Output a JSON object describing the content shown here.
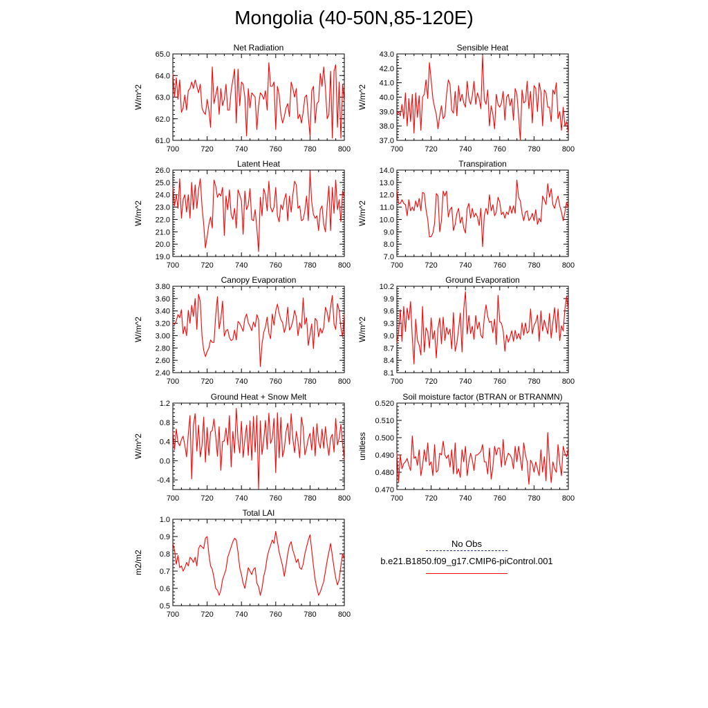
{
  "page_title": "Mongolia (40-50N,85-120E)",
  "legend": {
    "obs_label": "No Obs",
    "obs_color": "#2b2b8f",
    "model_label": "b.e21.B1850.f09_g17.CMIP6-piControl.001",
    "model_color": "#ff0000"
  },
  "chart_data": [
    {
      "type": "line",
      "title": "Net Radiation",
      "ylabel": "W/m^2",
      "xlim": [
        700,
        800
      ],
      "ylim": [
        61.0,
        65.0
      ],
      "xticks": [
        "700",
        "720",
        "740",
        "760",
        "780",
        "800"
      ],
      "yticks": [
        "61.0",
        "62.0",
        "63.0",
        "64.0",
        "65.0"
      ],
      "x_start": 700,
      "values": [
        64.1,
        63.0,
        63.9,
        62.9,
        63.8,
        62.3,
        62.5,
        63.1,
        62.4,
        63.3,
        63.4,
        63.7,
        63.4,
        63.8,
        63.5,
        63.2,
        63.6,
        62.5,
        62.3,
        62.2,
        62.9,
        62.4,
        61.6,
        64.4,
        62.7,
        63.1,
        63.5,
        62.2,
        63.4,
        62.6,
        62.9,
        63.6,
        62.4,
        62.4,
        63.3,
        63.8,
        64.3,
        61.8,
        64.3,
        62.6,
        63.7,
        63.6,
        63.0,
        61.2,
        63.4,
        62.5,
        63.2,
        63.1,
        63.0,
        61.5,
        62.6,
        63.2,
        63.1,
        62.9,
        63.3,
        62.4,
        64.6,
        63.5,
        63.5,
        63.7,
        61.5,
        63.5,
        63.1,
        62.2,
        61.8,
        62.1,
        62.5,
        62.7,
        62.1,
        63.7,
        63.4,
        63.0,
        63.4,
        62.0,
        62.2,
        61.8,
        62.3,
        63.0,
        63.1,
        62.1,
        61.2,
        63.3,
        63.5,
        61.8,
        62.7,
        62.8,
        64.1,
        63.5,
        64.4,
        63.4,
        62.0,
        62.2,
        64.2,
        61.1,
        64.2,
        64.5,
        61.6,
        63.7,
        61.1,
        63.6,
        62.8
      ]
    },
    {
      "type": "line",
      "title": "Sensible Heat",
      "ylabel": "W/m^2",
      "xlim": [
        700,
        800
      ],
      "ylim": [
        37.0,
        43.0
      ],
      "xticks": [
        "700",
        "720",
        "740",
        "760",
        "780",
        "800"
      ],
      "yticks": [
        "37.0",
        "38.0",
        "39.0",
        "40.0",
        "41.0",
        "42.0",
        "43.0"
      ],
      "x_start": 700,
      "values": [
        38.8,
        39.0,
        38.7,
        39.5,
        38.5,
        40.3,
        38.0,
        39.9,
        38.3,
        40.2,
        37.5,
        40.3,
        38.6,
        40.1,
        37.7,
        40.0,
        40.2,
        41.2,
        39.9,
        42.4,
        41.2,
        39.9,
        39.3,
        38.8,
        37.8,
        38.7,
        39.4,
        38.5,
        38.7,
        40.2,
        41.2,
        40.9,
        39.1,
        38.9,
        40.4,
        38.7,
        40.8,
        39.7,
        40.2,
        39.6,
        39.3,
        41.1,
        39.9,
        39.5,
        40.1,
        41.1,
        39.5,
        40.3,
        39.9,
        39.2,
        42.9,
        39.8,
        39.5,
        40.5,
        38.0,
        39.4,
        38.8,
        37.8,
        40.2,
        39.5,
        39.3,
        39.6,
        40.4,
        38.4,
        40.0,
        40.2,
        39.4,
        39.9,
        38.4,
        40.6,
        40.2,
        38.7,
        37.0,
        40.5,
        39.6,
        39.7,
        41.1,
        39.2,
        40.4,
        38.2,
        40.8,
        40.6,
        39.0,
        41.0,
        40.4,
        38.0,
        40.5,
        40.3,
        39.3,
        39.3,
        38.3,
        40.5,
        40.2,
        41.0,
        38.5,
        39.0,
        37.7,
        39.3,
        38.0,
        38.3,
        37.5
      ]
    },
    {
      "type": "line",
      "title": "Latent Heat",
      "ylabel": "W/m^2",
      "xlim": [
        700,
        800
      ],
      "ylim": [
        19.0,
        26.0
      ],
      "xticks": [
        "700",
        "720",
        "740",
        "760",
        "780",
        "800"
      ],
      "yticks": [
        "19.0",
        "20.0",
        "21.0",
        "22.0",
        "23.0",
        "24.0",
        "25.0",
        "26.0"
      ],
      "x_start": 700,
      "values": [
        24.6,
        23.1,
        24.0,
        22.9,
        25.3,
        22.1,
        23.6,
        24.0,
        22.6,
        24.0,
        22.1,
        25.0,
        22.8,
        24.8,
        22.9,
        24.4,
        25.3,
        23.1,
        21.6,
        19.7,
        20.6,
        21.6,
        22.2,
        21.3,
        25.2,
        24.7,
        23.8,
        24.1,
        23.9,
        24.6,
        20.7,
        23.9,
        22.8,
        24.4,
        22.4,
        22.0,
        22.9,
        21.3,
        24.4,
        24.0,
        23.5,
        20.8,
        24.3,
        22.8,
        23.2,
        24.5,
        22.0,
        21.9,
        22.8,
        21.3,
        19.4,
        23.8,
        22.3,
        24.5,
        24.0,
        22.7,
        25.1,
        23.0,
        22.6,
        23.0,
        24.6,
        22.3,
        21.8,
        23.2,
        22.8,
        23.6,
        24.1,
        21.9,
        23.9,
        22.6,
        24.0,
        25.1,
        24.8,
        22.9,
        23.1,
        21.9,
        22.0,
        22.7,
        23.9,
        21.9,
        25.9,
        23.4,
        22.4,
        22.1,
        22.3,
        21.1,
        22.8,
        23.1,
        21.6,
        21.0,
        23.1,
        24.7,
        21.1,
        24.6,
        22.5,
        25.2,
        22.8,
        23.6,
        21.8,
        24.3,
        23.8
      ]
    },
    {
      "type": "line",
      "title": "Transpiration",
      "ylabel": "W/m^2",
      "xlim": [
        700,
        800
      ],
      "ylim": [
        7.0,
        14.0
      ],
      "xticks": [
        "700",
        "720",
        "740",
        "760",
        "780",
        "800"
      ],
      "yticks": [
        "7.0",
        "8.0",
        "9.0",
        "10.0",
        "11.0",
        "12.0",
        "13.0",
        "14.0"
      ],
      "x_start": 700,
      "values": [
        12.4,
        11.3,
        11.3,
        11.6,
        11.3,
        11.2,
        10.3,
        11.6,
        10.7,
        11.0,
        10.7,
        11.5,
        11.0,
        11.7,
        10.7,
        12.2,
        12.1,
        10.8,
        10.0,
        8.6,
        8.6,
        8.9,
        9.7,
        12.1,
        11.9,
        9.0,
        9.9,
        12.3,
        11.9,
        12.3,
        10.2,
        10.8,
        11.0,
        9.1,
        9.6,
        10.5,
        10.9,
        9.7,
        10.2,
        9.3,
        8.9,
        10.9,
        11.3,
        10.1,
        10.9,
        10.2,
        10.5,
        10.2,
        9.5,
        10.9,
        7.8,
        10.3,
        10.9,
        10.4,
        12.0,
        10.7,
        11.2,
        10.3,
        10.6,
        11.8,
        11.4,
        10.4,
        10.6,
        10.1,
        10.6,
        10.4,
        11.1,
        10.5,
        11.1,
        10.5,
        13.2,
        11.8,
        11.5,
        10.5,
        9.9,
        10.6,
        10.7,
        9.9,
        10.1,
        10.5,
        9.9,
        10.8,
        9.6,
        10.1,
        9.8,
        11.9,
        11.6,
        11.2,
        12.9,
        11.8,
        12.5,
        11.2,
        10.9,
        11.5,
        11.9,
        11.1,
        10.6,
        9.9,
        10.6,
        11.4,
        10.9
      ]
    },
    {
      "type": "line",
      "title": "Canopy Evaporation",
      "ylabel": "W/m^2",
      "xlim": [
        700,
        800
      ],
      "ylim": [
        2.4,
        3.8
      ],
      "xticks": [
        "700",
        "720",
        "740",
        "760",
        "780",
        "800"
      ],
      "yticks": [
        "2.40",
        "2.60",
        "2.80",
        "3.00",
        "3.20",
        "3.40",
        "3.60",
        "3.80"
      ],
      "x_start": 700,
      "values": [
        3.21,
        3.18,
        3.24,
        3.34,
        3.29,
        3.42,
        3.03,
        3.15,
        3.0,
        3.41,
        3.2,
        3.49,
        3.31,
        3.6,
        3.1,
        3.67,
        3.55,
        3.0,
        2.76,
        2.66,
        2.74,
        2.8,
        2.93,
        2.89,
        2.89,
        3.33,
        3.63,
        3.11,
        3.27,
        3.56,
        2.99,
        3.08,
        3.1,
        2.97,
        2.92,
        2.94,
        3.09,
        2.93,
        3.23,
        3.2,
        3.14,
        3.07,
        3.28,
        3.35,
        3.21,
        3.15,
        3.08,
        3.22,
        3.14,
        3.34,
        3.26,
        2.5,
        2.86,
        3.05,
        3.14,
        3.3,
        3.04,
        2.95,
        3.35,
        3.17,
        3.4,
        3.51,
        3.36,
        3.26,
        3.21,
        3.05,
        3.16,
        3.46,
        3.09,
        3.14,
        3.24,
        3.41,
        3.3,
        3.0,
        3.21,
        3.12,
        3.61,
        3.18,
        3.29,
        2.84,
        3.02,
        3.19,
        2.79,
        3.28,
        3.24,
        2.98,
        3.12,
        3.04,
        3.13,
        3.46,
        3.38,
        3.22,
        3.46,
        3.65,
        3.19,
        3.1,
        3.52,
        3.41,
        3.13,
        2.98,
        3.35
      ]
    },
    {
      "type": "line",
      "title": "Ground Evaporation",
      "ylabel": "W/m^2",
      "xlim": [
        700,
        800
      ],
      "ylim": [
        8.1,
        10.2
      ],
      "xticks": [
        "700",
        "720",
        "740",
        "760",
        "780",
        "800"
      ],
      "yticks": [
        "8.1",
        "8.4",
        "8.7",
        "9.0",
        "9.3",
        "9.6",
        "9.9",
        "10.2"
      ],
      "x_start": 700,
      "values": [
        8.82,
        9.07,
        9.63,
        8.86,
        9.71,
        9.1,
        9.67,
        9.38,
        9.83,
        8.95,
        8.31,
        9.4,
        8.89,
        8.77,
        8.53,
        9.71,
        8.6,
        9.19,
        9.09,
        8.7,
        9.43,
        8.91,
        9.12,
        8.46,
        9.18,
        9.43,
        8.8,
        9.45,
        8.88,
        9.2,
        9.03,
        9.16,
        8.68,
        9.56,
        8.62,
        8.82,
        9.16,
        9.55,
        8.6,
        9.64,
        10.07,
        9.04,
        9.49,
        9.05,
        9.23,
        8.91,
        9.49,
        9.16,
        9.33,
        9.01,
        8.94,
        9.45,
        9.75,
        9.46,
        9.32,
        9.35,
        9.07,
        9.4,
        8.78,
        9.98,
        9.34,
        9.3,
        9.12,
        8.62,
        9.02,
        8.84,
        8.96,
        9.12,
        8.86,
        9.13,
        8.92,
        9.05,
        8.91,
        9.31,
        9.01,
        9.31,
        9.06,
        9.11,
        9.65,
        9.04,
        9.25,
        9.33,
        9.5,
        8.86,
        9.6,
        9.11,
        9.38,
        9.21,
        9.04,
        9.54,
        8.94,
        9.33,
        9.68,
        9.08,
        9.65,
        8.88,
        9.24,
        9.11,
        9.64,
        9.96,
        9.64
      ]
    },
    {
      "type": "line",
      "title": "Ground Heat + Snow Melt",
      "ylabel": "W/m^2",
      "xlim": [
        700,
        800
      ],
      "ylim": [
        -0.6,
        1.2
      ],
      "xticks": [
        "700",
        "720",
        "740",
        "760",
        "780",
        "800"
      ],
      "yticks": [
        "-0.4",
        "0.0",
        "0.4",
        "0.8",
        "1.2"
      ],
      "x_start": 700,
      "values": [
        0.61,
        0.23,
        0.66,
        0.38,
        0.31,
        0.44,
        0.51,
        0.32,
        0.08,
        0.55,
        0.94,
        -0.38,
        0.74,
        0.98,
        0.2,
        0.74,
        0.08,
        0.32,
        0.91,
        -0.03,
        0.69,
        0.11,
        0.6,
        0.63,
        0.87,
        0.51,
        0.09,
        0.71,
        -0.2,
        0.4,
        0.41,
        0.68,
        0.33,
        0.94,
        -0.13,
        0.61,
        0.16,
        1.09,
        0.43,
        0.16,
        0.82,
        0.07,
        0.44,
        0.74,
        0.11,
        0.83,
        0.01,
        0.92,
        0.18,
        0.94,
        -0.58,
        0.83,
        0.13,
        0.42,
        0.84,
        0.24,
        0.99,
        0.36,
        0.47,
        0.88,
        -0.25,
        1.0,
        0.06,
        0.9,
        0.08,
        0.24,
        0.6,
        0.78,
        0.34,
        0.98,
        0.45,
        0.17,
        0.61,
        0.39,
        0.06,
        0.91,
        0.69,
        0.12,
        0.27,
        0.46,
        0.57,
        0.22,
        0.7,
        0.1,
        0.77,
        0.4,
        0.26,
        0.66,
        0.26,
        0.71,
        0.35,
        0.11,
        0.47,
        0.55,
        0.18,
        0.88,
        0.33,
        0.47,
        0.76,
        0.34,
        0.02
      ]
    },
    {
      "type": "line",
      "title": "Soil moisture factor (BTRAN or BTRANMN)",
      "ylabel": "unitless",
      "xlim": [
        700,
        800
      ],
      "ylim": [
        0.47,
        0.52
      ],
      "xticks": [
        "700",
        "720",
        "740",
        "760",
        "780",
        "800"
      ],
      "yticks": [
        "0.470",
        "0.480",
        "0.490",
        "0.500",
        "0.510",
        "0.520"
      ],
      "x_start": 700,
      "values": [
        0.491,
        0.474,
        0.49,
        0.482,
        0.485,
        0.486,
        0.488,
        0.484,
        0.481,
        0.501,
        0.488,
        0.489,
        0.484,
        0.493,
        0.478,
        0.484,
        0.493,
        0.486,
        0.497,
        0.484,
        0.486,
        0.478,
        0.496,
        0.48,
        0.481,
        0.491,
        0.49,
        0.498,
        0.49,
        0.488,
        0.49,
        0.483,
        0.493,
        0.479,
        0.497,
        0.479,
        0.482,
        0.477,
        0.493,
        0.486,
        0.495,
        0.478,
        0.486,
        0.491,
        0.487,
        0.481,
        0.49,
        0.49,
        0.491,
        0.492,
        0.496,
        0.486,
        0.486,
        0.479,
        0.494,
        0.476,
        0.483,
        0.495,
        0.49,
        0.494,
        0.494,
        0.483,
        0.499,
        0.484,
        0.488,
        0.491,
        0.49,
        0.488,
        0.482,
        0.495,
        0.486,
        0.495,
        0.488,
        0.481,
        0.497,
        0.49,
        0.486,
        0.473,
        0.487,
        0.485,
        0.48,
        0.486,
        0.482,
        0.478,
        0.493,
        0.48,
        0.489,
        0.475,
        0.503,
        0.486,
        0.474,
        0.486,
        0.482,
        0.48,
        0.496,
        0.485,
        0.478,
        0.495,
        0.491,
        0.489,
        0.494
      ]
    },
    {
      "type": "line",
      "title": "Total LAI",
      "ylabel": "m2/m2",
      "xlim": [
        700,
        800
      ],
      "ylim": [
        0.5,
        1.0
      ],
      "xticks": [
        "700",
        "720",
        "740",
        "760",
        "780",
        "800"
      ],
      "yticks": [
        "0.5",
        "0.6",
        "0.7",
        "0.8",
        "0.9",
        "1.0"
      ],
      "x_start": 700,
      "values": [
        0.86,
        0.82,
        0.74,
        0.79,
        0.72,
        0.73,
        0.7,
        0.72,
        0.75,
        0.73,
        0.78,
        0.77,
        0.75,
        0.78,
        0.73,
        0.83,
        0.85,
        0.84,
        0.83,
        0.89,
        0.9,
        0.8,
        0.73,
        0.71,
        0.66,
        0.6,
        0.59,
        0.56,
        0.59,
        0.65,
        0.68,
        0.71,
        0.78,
        0.81,
        0.84,
        0.87,
        0.89,
        0.88,
        0.81,
        0.72,
        0.68,
        0.63,
        0.6,
        0.66,
        0.72,
        0.7,
        0.68,
        0.71,
        0.72,
        0.63,
        0.61,
        0.56,
        0.6,
        0.67,
        0.71,
        0.78,
        0.82,
        0.85,
        0.88,
        0.86,
        0.93,
        0.87,
        0.81,
        0.77,
        0.73,
        0.67,
        0.73,
        0.8,
        0.85,
        0.87,
        0.82,
        0.79,
        0.75,
        0.77,
        0.72,
        0.71,
        0.74,
        0.8,
        0.84,
        0.88,
        0.91,
        0.82,
        0.73,
        0.65,
        0.6,
        0.56,
        0.58,
        0.61,
        0.64,
        0.7,
        0.76,
        0.81,
        0.86,
        0.79,
        0.72,
        0.66,
        0.62,
        0.65,
        0.73,
        0.8,
        0.77
      ]
    }
  ]
}
